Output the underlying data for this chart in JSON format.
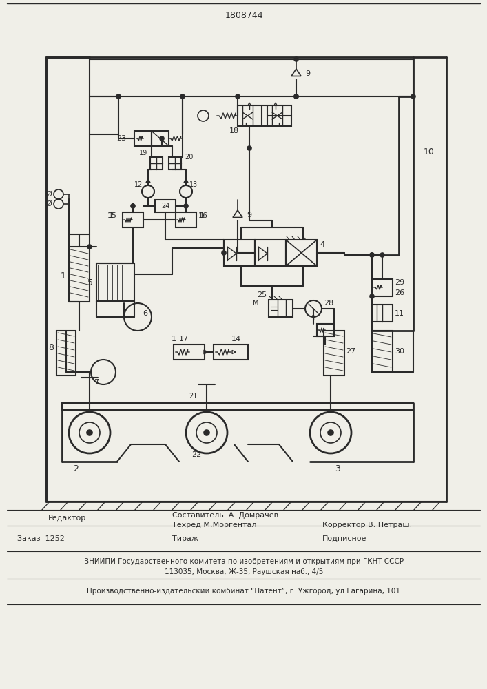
{
  "patent_number": "1808744",
  "bg_color": "#f0efe8",
  "line_color": "#2a2a2a",
  "footer_col1_row1": "Редактор",
  "footer_col2_row1": "Составитель  А. Домрачев",
  "footer_col2_row2": "Техред М.Моргентал",
  "footer_col3_row2": "Корректор В. Петраш.",
  "footer2_left": "Заказ  1252",
  "footer2_center": "Тираж",
  "footer2_right": "Подписное",
  "footer3": "ВНИИПИ Государственного комитета по изобретениям и открытиям при ГКНТ СССР",
  "footer4": "113035, Москва, Ж-35, Раушская наб., 4/5",
  "footer5": "Производственно-издательский комбинат “Патент”, г. Ужгород, ул.Гагарина, 101"
}
